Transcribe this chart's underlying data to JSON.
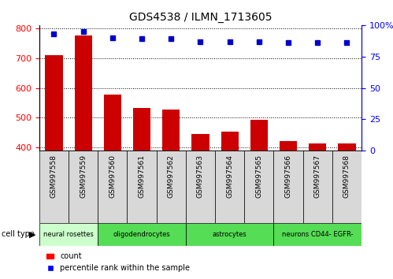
{
  "title": "GDS4538 / ILMN_1713605",
  "samples": [
    "GSM997558",
    "GSM997559",
    "GSM997560",
    "GSM997561",
    "GSM997562",
    "GSM997563",
    "GSM997564",
    "GSM997565",
    "GSM997566",
    "GSM997567",
    "GSM997568"
  ],
  "counts": [
    710,
    775,
    578,
    532,
    527,
    447,
    453,
    492,
    422,
    414,
    413
  ],
  "percentile_ranks": [
    93,
    95,
    90,
    89,
    89,
    87,
    87,
    87,
    86,
    86,
    86
  ],
  "cell_types": [
    {
      "label": "neural rosettes",
      "start": 0,
      "end": 1,
      "color": "#ccffcc"
    },
    {
      "label": "oligodendrocytes",
      "start": 2,
      "end": 4,
      "color": "#55dd55"
    },
    {
      "label": "astrocytes",
      "start": 5,
      "end": 7,
      "color": "#55dd55"
    },
    {
      "label": "neurons CD44- EGFR-",
      "start": 8,
      "end": 10,
      "color": "#55dd55"
    }
  ],
  "ylim_left": [
    390,
    810
  ],
  "ylim_right": [
    0,
    100
  ],
  "yticks_left": [
    400,
    500,
    600,
    700,
    800
  ],
  "yticks_right": [
    0,
    25,
    50,
    75,
    100
  ],
  "bar_color": "#cc0000",
  "dot_color": "#0000cc",
  "bar_width": 0.6,
  "lighter_green": "#ccffcc",
  "darker_green": "#55dd55",
  "gray_box": "#d8d8d8"
}
